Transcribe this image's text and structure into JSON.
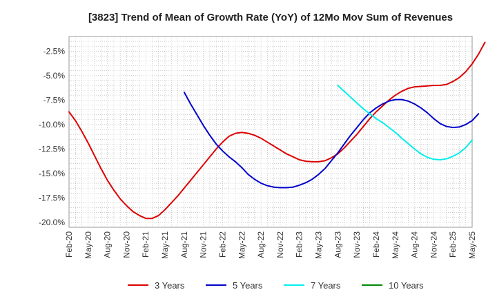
{
  "chart_data": {
    "type": "line",
    "title": "[3823]  Trend of Mean of Growth Rate (YoY) of 12Mo Mov Sum of Revenues",
    "xlabel": "",
    "ylabel": "",
    "ylim": [
      -20.5,
      -1.0
    ],
    "yticks": [
      -2.5,
      -5.0,
      -7.5,
      -10.0,
      -12.5,
      -15.0,
      -17.5,
      -20.0
    ],
    "ytick_labels": [
      "-2.5%",
      "-5.0%",
      "-7.5%",
      "-10.0%",
      "-12.5%",
      "-15.0%",
      "-17.5%",
      "-20.0%"
    ],
    "x_start": "Feb-20",
    "x_end": "May-25",
    "xtick_labels": [
      "Feb-20",
      "May-20",
      "Aug-20",
      "Nov-20",
      "Feb-21",
      "May-21",
      "Aug-21",
      "Nov-21",
      "Feb-22",
      "May-22",
      "Aug-22",
      "Nov-22",
      "Feb-23",
      "May-23",
      "Aug-23",
      "Nov-23",
      "Feb-24",
      "May-24",
      "Aug-24",
      "Nov-24",
      "Feb-25",
      "May-25"
    ],
    "grid": true,
    "legend_position": "bottom",
    "series": [
      {
        "name": "3 Years",
        "color": "#dd0000",
        "start_index": 0,
        "values": [
          -8.7,
          -9.6,
          -10.7,
          -11.9,
          -13.2,
          -14.5,
          -15.7,
          -16.7,
          -17.6,
          -18.3,
          -18.9,
          -19.3,
          -19.6,
          -19.6,
          -19.3,
          -18.7,
          -18.0,
          -17.3,
          -16.5,
          -15.7,
          -14.9,
          -14.1,
          -13.3,
          -12.5,
          -11.8,
          -11.2,
          -10.9,
          -10.8,
          -10.9,
          -11.1,
          -11.4,
          -11.8,
          -12.2,
          -12.6,
          -13.0,
          -13.3,
          -13.6,
          -13.75,
          -13.8,
          -13.8,
          -13.7,
          -13.4,
          -13.0,
          -12.4,
          -11.7,
          -11.0,
          -10.2,
          -9.4,
          -8.7,
          -8.1,
          -7.5,
          -7.0,
          -6.6,
          -6.3,
          -6.15,
          -6.1,
          -6.05,
          -6.0,
          -6.0,
          -5.9,
          -5.6,
          -5.2,
          -4.6,
          -3.8,
          -2.8,
          -1.6
        ]
      },
      {
        "name": "5 Years",
        "color": "#0000cc",
        "start_index": 18,
        "values": [
          -6.7,
          -7.9,
          -9.0,
          -10.1,
          -11.1,
          -12.0,
          -12.7,
          -13.3,
          -13.8,
          -14.4,
          -15.1,
          -15.6,
          -16.0,
          -16.25,
          -16.4,
          -16.45,
          -16.45,
          -16.4,
          -16.2,
          -15.95,
          -15.6,
          -15.1,
          -14.5,
          -13.7,
          -12.9,
          -12.0,
          -11.1,
          -10.3,
          -9.5,
          -8.8,
          -8.3,
          -7.9,
          -7.6,
          -7.45,
          -7.45,
          -7.6,
          -7.9,
          -8.3,
          -8.8,
          -9.4,
          -9.9,
          -10.2,
          -10.3,
          -10.25,
          -10.0,
          -9.6,
          -8.9
        ]
      },
      {
        "name": "7 Years",
        "color": "#00eeee",
        "start_index": 42,
        "values": [
          -6.0,
          -6.6,
          -7.2,
          -7.8,
          -8.4,
          -8.9,
          -9.4,
          -9.8,
          -10.3,
          -10.8,
          -11.4,
          -11.95,
          -12.5,
          -13.0,
          -13.35,
          -13.55,
          -13.6,
          -13.5,
          -13.25,
          -12.9,
          -12.35,
          -11.6
        ]
      },
      {
        "name": "10 Years",
        "color": "#008800",
        "start_index": 0,
        "values": []
      }
    ]
  }
}
